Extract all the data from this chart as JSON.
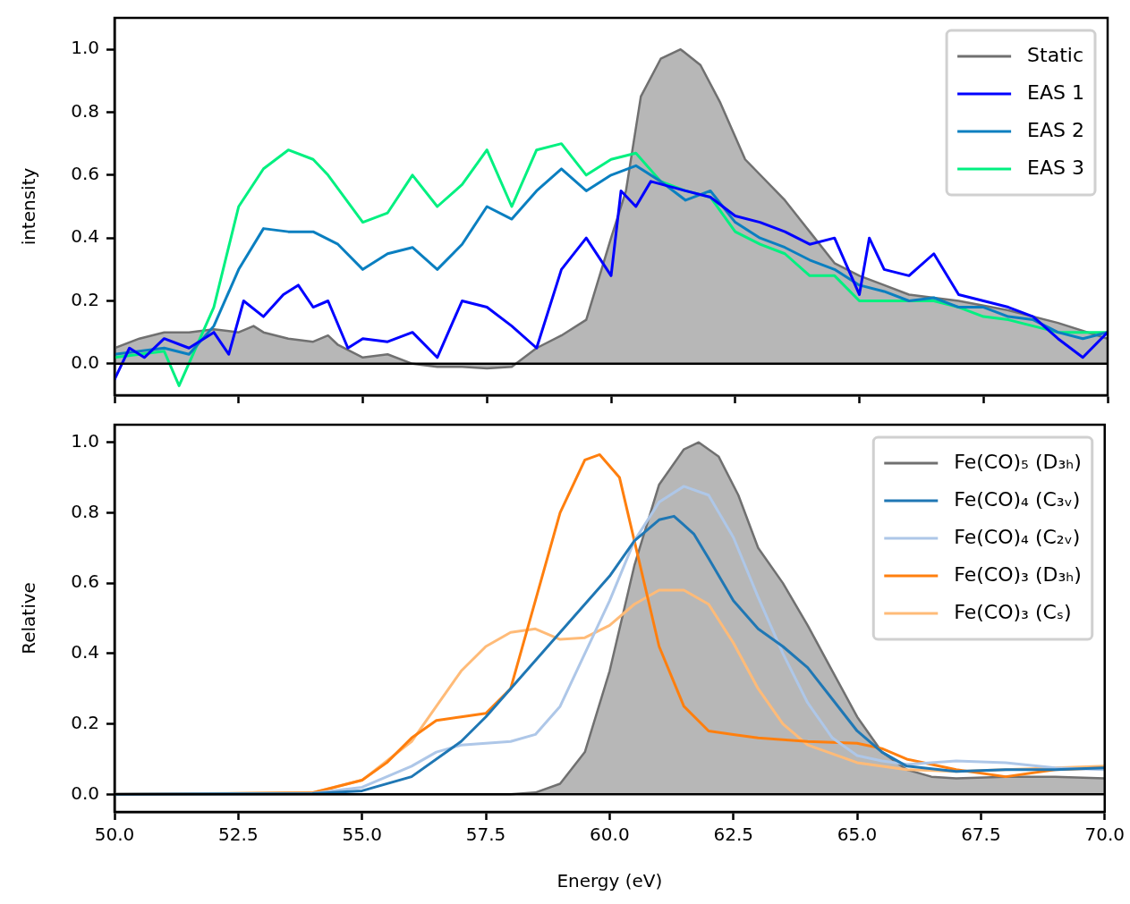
{
  "chart_data": [
    {
      "type": "line",
      "ylabel": "intensity",
      "xlim": [
        50,
        70
      ],
      "ylim": [
        -0.1,
        1.1
      ],
      "xticks": [
        {
          "value": 50,
          "label": null
        },
        {
          "value": 52.5,
          "label": null
        },
        {
          "value": 55,
          "label": null
        },
        {
          "value": 57.5,
          "label": null
        },
        {
          "value": 60,
          "label": null
        },
        {
          "value": 62.5,
          "label": null
        },
        {
          "value": 65,
          "label": null
        },
        {
          "value": 67.5,
          "label": null
        },
        {
          "value": 70,
          "label": null
        }
      ],
      "yticks": [
        {
          "value": 0,
          "label": "0.0"
        },
        {
          "value": 0.2,
          "label": "0.2"
        },
        {
          "value": 0.4,
          "label": "0.4"
        },
        {
          "value": 0.6,
          "label": "0.6"
        },
        {
          "value": 0.8,
          "label": "0.8"
        },
        {
          "value": 1,
          "label": "1.0"
        }
      ],
      "tick_labels": "y",
      "grid": false,
      "legend": "top right",
      "marker": "none",
      "line_style": "solid",
      "ref_lines": [
        {
          "axis": "y",
          "value": 0,
          "color": "#000000"
        }
      ],
      "series": [
        {
          "name": "Static",
          "type": "area",
          "color": "#707070",
          "x": [
            50,
            50.5,
            51,
            51.5,
            52,
            52.5,
            52.8,
            53,
            53.5,
            54,
            54.3,
            54.5,
            55,
            55.5,
            56,
            56.5,
            57,
            57.5,
            58,
            58.5,
            59,
            59.5,
            60,
            60.3,
            60.6,
            61,
            61.4,
            61.8,
            62.2,
            62.7,
            63.5,
            64,
            64.5,
            65,
            65.5,
            66,
            67,
            68,
            69,
            70
          ],
          "values": [
            0.05,
            0.08,
            0.1,
            0.1,
            0.11,
            0.1,
            0.12,
            0.1,
            0.08,
            0.07,
            0.09,
            0.06,
            0.02,
            0.03,
            0,
            -0.01,
            -0.01,
            -0.015,
            -0.01,
            0.05,
            0.09,
            0.14,
            0.4,
            0.55,
            0.85,
            0.97,
            1,
            0.95,
            0.83,
            0.65,
            0.52,
            0.42,
            0.32,
            0.28,
            0.25,
            0.22,
            0.2,
            0.17,
            0.13,
            0.08
          ]
        },
        {
          "name": "EAS 1",
          "color": "#0000ff",
          "x": [
            50,
            50.3,
            50.6,
            51,
            51.5,
            52,
            52.3,
            52.6,
            53,
            53.4,
            53.7,
            54,
            54.3,
            54.7,
            55,
            55.5,
            56,
            56.5,
            57,
            57.5,
            58,
            58.5,
            59,
            59.5,
            60,
            60.2,
            60.5,
            60.8,
            61.5,
            62,
            62.5,
            63,
            63.5,
            64,
            64.5,
            65,
            65.2,
            65.5,
            66,
            66.5,
            67,
            67.5,
            68,
            68.5,
            69,
            69.5,
            70
          ],
          "values": [
            -0.05,
            0.05,
            0.02,
            0.08,
            0.05,
            0.1,
            0.03,
            0.2,
            0.15,
            0.22,
            0.25,
            0.18,
            0.2,
            0.05,
            0.08,
            0.07,
            0.1,
            0.02,
            0.2,
            0.18,
            0.12,
            0.05,
            0.3,
            0.4,
            0.28,
            0.55,
            0.5,
            0.58,
            0.55,
            0.53,
            0.47,
            0.45,
            0.42,
            0.38,
            0.4,
            0.22,
            0.4,
            0.3,
            0.28,
            0.35,
            0.22,
            0.2,
            0.18,
            0.15,
            0.08,
            0.02,
            0.1
          ]
        },
        {
          "name": "EAS 2",
          "color": "#0a7fc0",
          "x": [
            50,
            51,
            51.5,
            52,
            52.5,
            53,
            53.5,
            54,
            54.5,
            55,
            55.5,
            56,
            56.5,
            57,
            57.5,
            58,
            58.5,
            59,
            59.5,
            60,
            60.5,
            61,
            61.5,
            62,
            62.5,
            63,
            63.5,
            64,
            64.5,
            65,
            65.5,
            66,
            66.5,
            67,
            67.5,
            68,
            68.5,
            69,
            69.5,
            70
          ],
          "values": [
            0.03,
            0.05,
            0.03,
            0.12,
            0.3,
            0.43,
            0.42,
            0.42,
            0.38,
            0.3,
            0.35,
            0.37,
            0.3,
            0.38,
            0.5,
            0.46,
            0.55,
            0.62,
            0.55,
            0.6,
            0.63,
            0.58,
            0.52,
            0.55,
            0.45,
            0.4,
            0.37,
            0.33,
            0.3,
            0.25,
            0.23,
            0.2,
            0.21,
            0.18,
            0.18,
            0.15,
            0.14,
            0.1,
            0.08,
            0.1
          ]
        },
        {
          "name": "EAS 3",
          "color": "#00f080",
          "x": [
            50,
            51,
            51.3,
            52,
            52.5,
            53,
            53.5,
            54,
            54.3,
            55,
            55.5,
            56,
            56.5,
            57,
            57.5,
            58,
            58.5,
            59,
            59.5,
            60,
            60.5,
            61,
            61.5,
            62,
            62.5,
            63,
            63.5,
            64,
            64.5,
            65,
            65.5,
            66,
            66.5,
            67,
            67.5,
            68,
            68.5,
            69,
            70
          ],
          "values": [
            0.02,
            0.04,
            -0.07,
            0.18,
            0.5,
            0.62,
            0.68,
            0.65,
            0.6,
            0.45,
            0.48,
            0.6,
            0.5,
            0.57,
            0.68,
            0.5,
            0.68,
            0.7,
            0.6,
            0.65,
            0.67,
            0.58,
            0.55,
            0.53,
            0.42,
            0.38,
            0.35,
            0.28,
            0.28,
            0.2,
            0.2,
            0.2,
            0.2,
            0.18,
            0.15,
            0.14,
            0.12,
            0.1,
            0.1
          ]
        }
      ]
    },
    {
      "type": "line",
      "ylabel": "Relative",
      "xlabel": "Energy (eV)",
      "xlim": [
        50,
        70
      ],
      "ylim": [
        -0.05,
        1.05
      ],
      "xticks": [
        {
          "value": 50,
          "label": "50.0"
        },
        {
          "value": 52.5,
          "label": "52.5"
        },
        {
          "value": 55,
          "label": "55.0"
        },
        {
          "value": 57.5,
          "label": "57.5"
        },
        {
          "value": 60,
          "label": "60.0"
        },
        {
          "value": 62.5,
          "label": "62.5"
        },
        {
          "value": 65,
          "label": "65.0"
        },
        {
          "value": 67.5,
          "label": "67.5"
        },
        {
          "value": 70,
          "label": "70.0"
        }
      ],
      "yticks": [
        {
          "value": 0,
          "label": "0.0"
        },
        {
          "value": 0.2,
          "label": "0.2"
        },
        {
          "value": 0.4,
          "label": "0.4"
        },
        {
          "value": 0.6,
          "label": "0.6"
        },
        {
          "value": 0.8,
          "label": "0.8"
        },
        {
          "value": 1,
          "label": "1.0"
        }
      ],
      "grid": false,
      "legend": "top right",
      "marker": "none",
      "line_style": "solid",
      "ref_lines": [
        {
          "axis": "y",
          "value": 0,
          "color": "#000000"
        }
      ],
      "series": [
        {
          "name": "Fe(CO)₅ (D₃ₕ)",
          "type": "area",
          "color": "#707070",
          "x": [
            50,
            58,
            58.5,
            59,
            59.5,
            60,
            60.5,
            61,
            61.5,
            61.8,
            62.2,
            62.6,
            63,
            63.5,
            64,
            64.5,
            65,
            65.5,
            66,
            66.5,
            67,
            68,
            69,
            70
          ],
          "values": [
            0,
            0,
            0.005,
            0.03,
            0.12,
            0.35,
            0.65,
            0.88,
            0.98,
            1,
            0.96,
            0.85,
            0.7,
            0.6,
            0.48,
            0.35,
            0.22,
            0.12,
            0.07,
            0.05,
            0.045,
            0.05,
            0.05,
            0.045
          ]
        },
        {
          "name": "Fe(CO)₄ (C₃ᵥ)",
          "color": "#1f77b4",
          "x": [
            50,
            54,
            55,
            56,
            57,
            57.5,
            58,
            59,
            60,
            60.5,
            61,
            61.3,
            61.7,
            62,
            62.5,
            63,
            63.5,
            64,
            64.5,
            65,
            65.5,
            66,
            67,
            68,
            69,
            70
          ],
          "values": [
            0,
            0.002,
            0.01,
            0.05,
            0.15,
            0.22,
            0.3,
            0.46,
            0.62,
            0.72,
            0.78,
            0.79,
            0.74,
            0.67,
            0.55,
            0.47,
            0.42,
            0.36,
            0.27,
            0.18,
            0.12,
            0.08,
            0.065,
            0.07,
            0.07,
            0.075
          ]
        },
        {
          "name": "Fe(CO)₄ (C₂ᵥ)",
          "color": "#aec7e8",
          "x": [
            50,
            54,
            55,
            56,
            56.5,
            57,
            57.5,
            58,
            58.5,
            59,
            59.5,
            60,
            60.5,
            61,
            61.5,
            62,
            62.5,
            63,
            63.5,
            64,
            64.5,
            65,
            65.5,
            66,
            67,
            68,
            69,
            70
          ],
          "values": [
            0,
            0.003,
            0.02,
            0.08,
            0.12,
            0.14,
            0.145,
            0.15,
            0.17,
            0.25,
            0.4,
            0.55,
            0.72,
            0.83,
            0.875,
            0.85,
            0.73,
            0.56,
            0.4,
            0.26,
            0.16,
            0.11,
            0.095,
            0.085,
            0.095,
            0.09,
            0.075,
            0.07
          ]
        },
        {
          "name": "Fe(CO)₃ (D₃ₕ)",
          "color": "#ff7f0e",
          "x": [
            50,
            54,
            55,
            55.5,
            56,
            56.5,
            57,
            57.5,
            58,
            58.5,
            59,
            59.5,
            59.8,
            60.2,
            60.5,
            61,
            61.5,
            62,
            62.5,
            63,
            64,
            65,
            65.5,
            66,
            67,
            68,
            69,
            70
          ],
          "values": [
            0,
            0.004,
            0.04,
            0.09,
            0.16,
            0.21,
            0.22,
            0.23,
            0.3,
            0.55,
            0.8,
            0.95,
            0.965,
            0.9,
            0.72,
            0.42,
            0.25,
            0.18,
            0.17,
            0.16,
            0.15,
            0.145,
            0.13,
            0.1,
            0.07,
            0.05,
            0.07,
            0.075
          ]
        },
        {
          "name": "Fe(CO)₃ (Cₛ)",
          "color": "#ffbb78",
          "x": [
            50,
            54,
            55,
            56,
            56.5,
            57,
            57.5,
            58,
            58.5,
            59,
            59.5,
            60,
            60.5,
            61,
            61.5,
            62,
            62.5,
            63,
            63.5,
            64,
            65,
            66,
            67,
            68,
            69,
            70
          ],
          "values": [
            0,
            0.005,
            0.04,
            0.15,
            0.25,
            0.35,
            0.42,
            0.46,
            0.47,
            0.44,
            0.445,
            0.48,
            0.54,
            0.58,
            0.58,
            0.54,
            0.43,
            0.3,
            0.2,
            0.14,
            0.09,
            0.07,
            0.065,
            0.07,
            0.075,
            0.08
          ]
        }
      ]
    }
  ]
}
